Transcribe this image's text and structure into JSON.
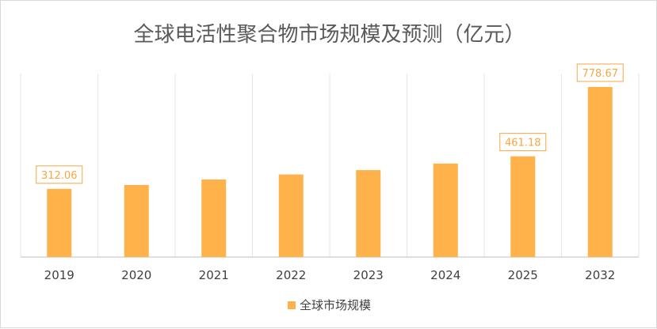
{
  "chart_data": {
    "type": "bar",
    "title": "全球电活性聚合物市场规模及预测（亿元）",
    "categories": [
      "2019",
      "2020",
      "2021",
      "2022",
      "2023",
      "2024",
      "2025",
      "2032"
    ],
    "series": [
      {
        "name": "全球市场规模",
        "values": [
          312.06,
          330,
          355,
          378,
          398,
          428,
          461.18,
          778.67
        ],
        "color": "#ffb24a"
      }
    ],
    "data_labels": [
      {
        "index": 0,
        "text": "312.06"
      },
      {
        "index": 6,
        "text": "461.18"
      },
      {
        "index": 7,
        "text": "778.67"
      }
    ],
    "ylim": [
      0,
      840
    ],
    "grid": "vertical",
    "legend": "bottom",
    "label_color": "#f5a742"
  }
}
